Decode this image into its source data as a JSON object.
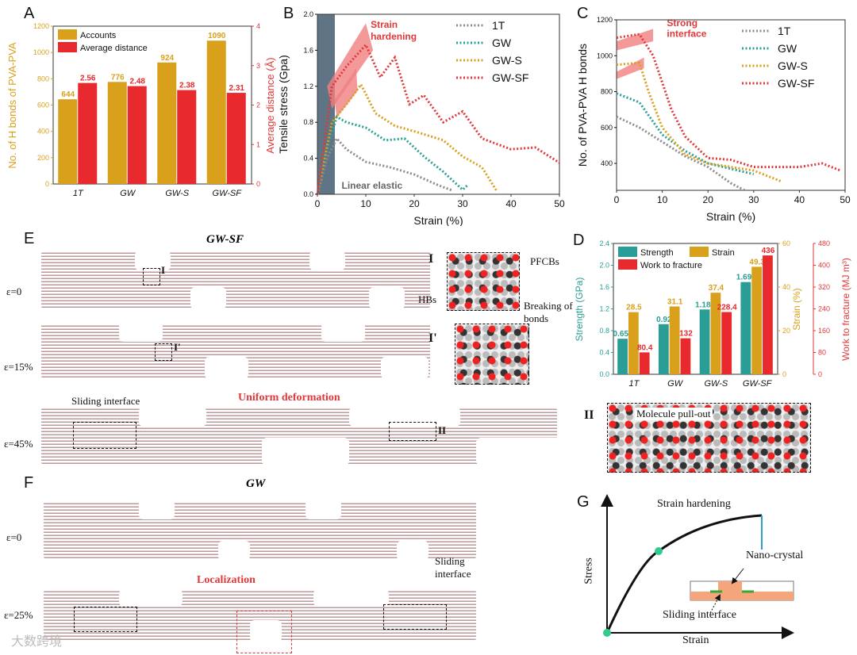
{
  "panels": {
    "A": "A",
    "B": "B",
    "C": "C",
    "D": "D",
    "E": "E",
    "F": "F",
    "G": "G"
  },
  "chart_data": [
    {
      "id": "A",
      "type": "bar",
      "categories": [
        "1T",
        "GW",
        "GW-S",
        "GW-SF"
      ],
      "series": [
        {
          "name": "Accounts",
          "axis": "left",
          "color": "#d9a01c",
          "values": [
            644,
            776,
            924,
            1090
          ],
          "labels": [
            "644",
            "776",
            "924",
            "1090"
          ]
        },
        {
          "name": "Average distance",
          "axis": "right",
          "color": "#e8292d",
          "values": [
            2.56,
            2.48,
            2.38,
            2.31
          ],
          "labels": [
            "2.56",
            "2.48",
            "2.38",
            "2.31"
          ]
        }
      ],
      "ylabel": "No. of H bonds of PVA-PVA",
      "ylim": [
        0,
        1200
      ],
      "yticks": [
        "0",
        "200",
        "400",
        "600",
        "800",
        "1000",
        "1200"
      ],
      "y2label": "Average distance (Å)",
      "y2lim": [
        0,
        4
      ],
      "y2ticks": [
        "0",
        "1",
        "2",
        "3",
        "4"
      ],
      "legend": "top-left"
    },
    {
      "id": "B",
      "type": "line",
      "xlabel": "Strain (%)",
      "ylabel": "Tensile stress (Gpa)",
      "xlim": [
        0,
        50
      ],
      "ylim": [
        0,
        2.0
      ],
      "xticks": [
        "0",
        "10",
        "20",
        "30",
        "40",
        "50"
      ],
      "yticks": [
        "0.0",
        "0.4",
        "0.8",
        "1.2",
        "1.6",
        "2.0"
      ],
      "legend": "top-right",
      "annotations": [
        "Strain hardening",
        "Linear elastic"
      ],
      "series": [
        {
          "name": "1T",
          "color": "#8c8c8c",
          "points": [
            [
              0,
              0
            ],
            [
              2,
              0.4
            ],
            [
              4,
              0.62
            ],
            [
              6,
              0.5
            ],
            [
              10,
              0.36
            ],
            [
              15,
              0.3
            ],
            [
              20,
              0.22
            ],
            [
              25,
              0.1
            ],
            [
              28,
              0.04
            ]
          ]
        },
        {
          "name": "GW",
          "color": "#2aa198",
          "points": [
            [
              0,
              0
            ],
            [
              2,
              0.5
            ],
            [
              4,
              0.86
            ],
            [
              6,
              0.8
            ],
            [
              10,
              0.74
            ],
            [
              14,
              0.6
            ],
            [
              18,
              0.62
            ],
            [
              22,
              0.42
            ],
            [
              26,
              0.25
            ],
            [
              30,
              0.05
            ],
            [
              31,
              0.1
            ]
          ]
        },
        {
          "name": "GW-S",
          "color": "#d9a01c",
          "points": [
            [
              0,
              0
            ],
            [
              3,
              0.8
            ],
            [
              6,
              1.0
            ],
            [
              9,
              1.22
            ],
            [
              12,
              0.9
            ],
            [
              16,
              0.76
            ],
            [
              20,
              0.7
            ],
            [
              26,
              0.6
            ],
            [
              30,
              0.42
            ],
            [
              34,
              0.3
            ],
            [
              37,
              0.04
            ]
          ]
        },
        {
          "name": "GW-SF",
          "color": "#e0383a",
          "points": [
            [
              0,
              0
            ],
            [
              3,
              1.2
            ],
            [
              6,
              1.42
            ],
            [
              10,
              1.66
            ],
            [
              13,
              1.3
            ],
            [
              16,
              1.52
            ],
            [
              19,
              1.0
            ],
            [
              22,
              1.1
            ],
            [
              26,
              0.8
            ],
            [
              30,
              0.92
            ],
            [
              34,
              0.62
            ],
            [
              40,
              0.5
            ],
            [
              45,
              0.52
            ],
            [
              50,
              0.35
            ]
          ]
        }
      ]
    },
    {
      "id": "C",
      "type": "line",
      "xlabel": "Strain (%)",
      "ylabel": "No. of PVA-PVA H bonds",
      "xlim": [
        0,
        50
      ],
      "ylim": [
        250,
        1200
      ],
      "xticks": [
        "0",
        "10",
        "20",
        "30",
        "40",
        "50"
      ],
      "yticks": [
        "400",
        "600",
        "800",
        "1000",
        "1200"
      ],
      "legend": "top-right",
      "annotations": [
        "Strong interface"
      ],
      "series": [
        {
          "name": "1T",
          "color": "#8c8c8c",
          "points": [
            [
              0,
              660
            ],
            [
              5,
              600
            ],
            [
              10,
              520
            ],
            [
              15,
              440
            ],
            [
              20,
              380
            ],
            [
              25,
              290
            ],
            [
              28,
              250
            ]
          ]
        },
        {
          "name": "GW",
          "color": "#2aa198",
          "points": [
            [
              0,
              790
            ],
            [
              5,
              740
            ],
            [
              10,
              560
            ],
            [
              15,
              470
            ],
            [
              20,
              400
            ],
            [
              25,
              370
            ],
            [
              30,
              340
            ]
          ]
        },
        {
          "name": "GW-S",
          "color": "#d9a01c",
          "points": [
            [
              0,
              950
            ],
            [
              5,
              960
            ],
            [
              7,
              800
            ],
            [
              10,
              600
            ],
            [
              15,
              450
            ],
            [
              20,
              400
            ],
            [
              25,
              380
            ],
            [
              30,
              360
            ],
            [
              36,
              300
            ]
          ]
        },
        {
          "name": "GW-SF",
          "color": "#e0383a",
          "points": [
            [
              0,
              1100
            ],
            [
              5,
              1120
            ],
            [
              8,
              1000
            ],
            [
              12,
              700
            ],
            [
              15,
              550
            ],
            [
              20,
              430
            ],
            [
              25,
              420
            ],
            [
              30,
              380
            ],
            [
              40,
              380
            ],
            [
              45,
              400
            ],
            [
              49,
              360
            ]
          ]
        }
      ]
    },
    {
      "id": "D",
      "type": "bar",
      "categories": [
        "1T",
        "GW",
        "GW-S",
        "GW-SF"
      ],
      "series": [
        {
          "name": "Strength",
          "axis": "left",
          "color": "#2a9d96",
          "values": [
            0.652,
            0.92,
            1.189,
            1.692
          ],
          "labels": [
            "0.652",
            "0.92",
            "1.189",
            "1.692"
          ]
        },
        {
          "name": "Strain",
          "axis": "right1",
          "color": "#d9a01c",
          "values": [
            28.5,
            31.1,
            37.4,
            49.3
          ],
          "labels": [
            "28.5",
            "31.1",
            "37.4",
            "49.3"
          ]
        },
        {
          "name": "Work to fracture",
          "axis": "right2",
          "color": "#e8292d",
          "values": [
            80.4,
            132,
            228.4,
            436
          ],
          "labels": [
            "80.4",
            "132",
            "228.4",
            "436"
          ]
        }
      ],
      "ylabel": "Strength (GPa)",
      "ylim": [
        0,
        2.4
      ],
      "yticks": [
        "0.0",
        "0.4",
        "0.8",
        "1.2",
        "1.6",
        "2.0",
        "2.4"
      ],
      "y2label": "Strain (%)",
      "y2lim": [
        0,
        60
      ],
      "y2ticks": [
        "0",
        "20",
        "40",
        "60"
      ],
      "y3label": "Work to fracture (MJ m³)",
      "y3lim": [
        0,
        480
      ],
      "y3ticks": [
        "0",
        "80",
        "160",
        "240",
        "320",
        "400",
        "480"
      ],
      "legend": "top-left"
    }
  ],
  "E": {
    "title": "GW-SF",
    "eps": [
      "ε=0",
      "ε=15%",
      "ε=45%"
    ],
    "marks": [
      "I",
      "I'",
      "II"
    ],
    "sliding": "Sliding interface",
    "uniform": "Uniform deformation",
    "insetI": {
      "label": "I",
      "hbs": "HBs",
      "pfcbs": "PFCBs",
      "breaking": "Breaking of bonds"
    },
    "insetI2": {
      "label": "I'"
    },
    "insetII": {
      "label": "II",
      "text": "Molecule pull-out"
    }
  },
  "F": {
    "title": "GW",
    "eps": [
      "ε=0",
      "ε=25%"
    ],
    "localization": "Localization",
    "sliding": "Sliding interface"
  },
  "G": {
    "ylabel": "Stress",
    "xlabel": "Strain",
    "hardening": "Strain hardening",
    "nano": "Nano-crystal",
    "sliding": "Sliding interface"
  },
  "watermark": "大数跨境"
}
